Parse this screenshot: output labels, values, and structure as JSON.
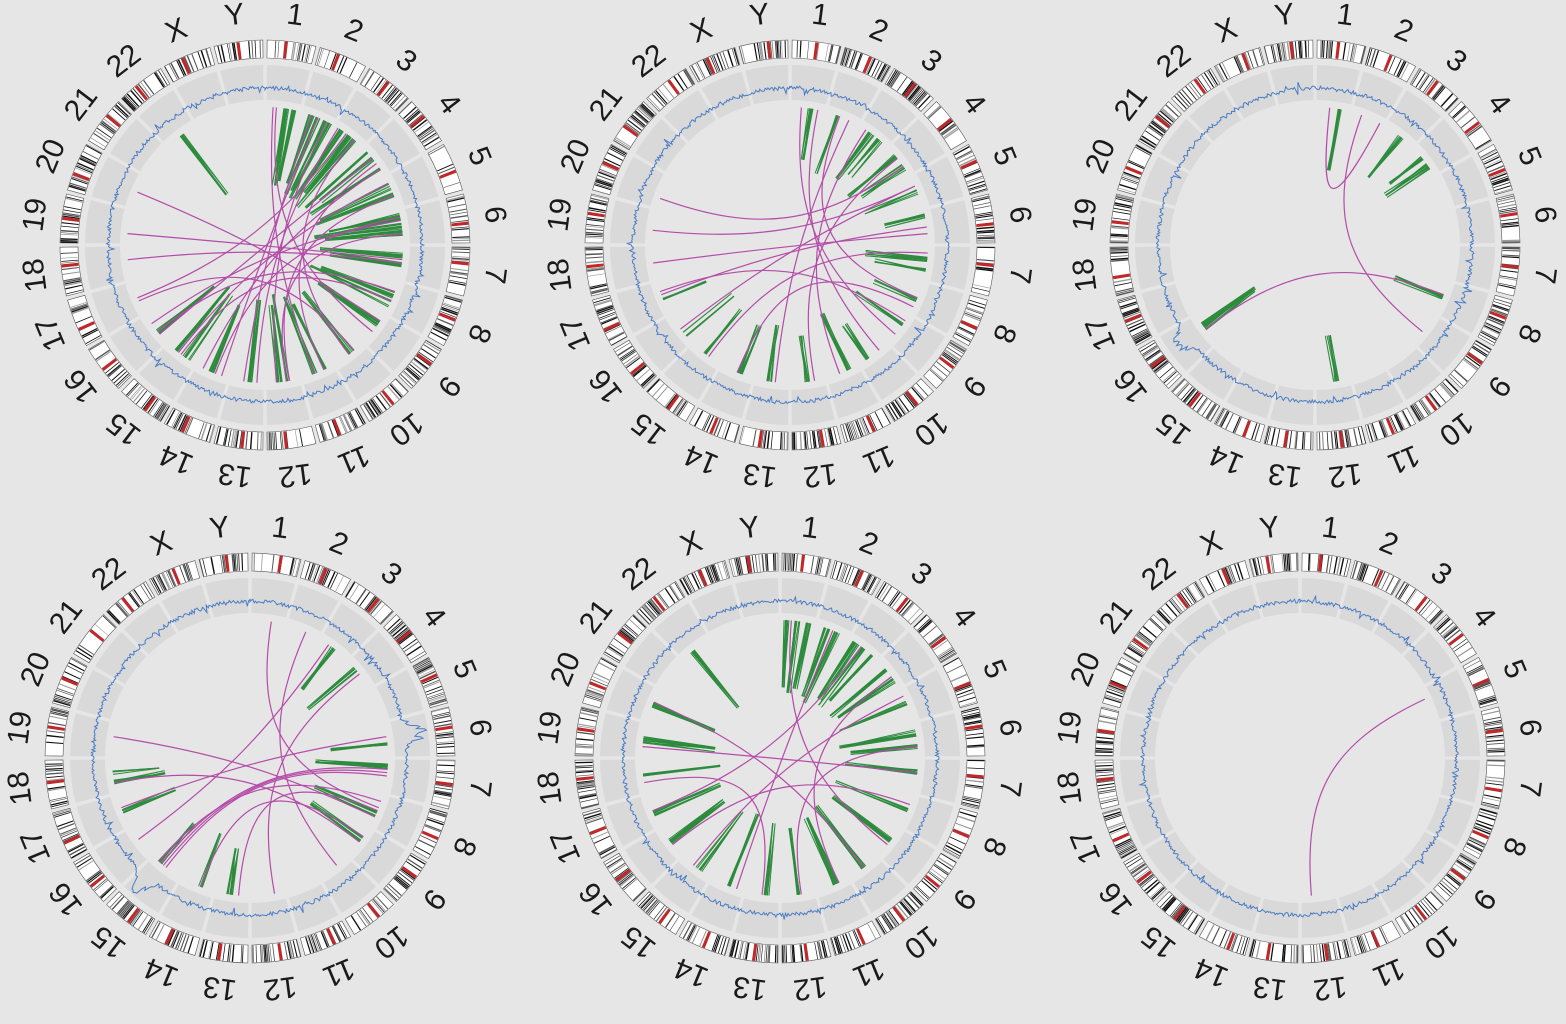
{
  "chromosomes": [
    "1",
    "2",
    "3",
    "4",
    "5",
    "6",
    "7",
    "8",
    "9",
    "10",
    "11",
    "12",
    "13",
    "14",
    "15",
    "16",
    "17",
    "18",
    "19",
    "20",
    "21",
    "22",
    "X",
    "Y"
  ],
  "colors": {
    "background": "#e6e6e6",
    "track": "#d9d9d9",
    "copy_number_line": "#4a7cc4",
    "intra_chromosomal_link": "#2e8b3e",
    "inter_chromosomal_link": "#b44ca8",
    "band_dark": "#111111",
    "band_centromere": "#c0282a"
  },
  "panels": [
    {
      "id": "panel-1",
      "density": "high",
      "intra_links": [
        [
          2,
          30,
          0.7
        ],
        [
          2,
          50,
          0.8
        ],
        [
          2,
          70,
          0.75
        ],
        [
          2,
          90,
          0.82
        ],
        [
          3,
          20,
          0.8
        ],
        [
          3,
          45,
          0.7
        ],
        [
          3,
          65,
          0.85
        ],
        [
          4,
          15,
          0.8
        ],
        [
          4,
          40,
          0.65
        ],
        [
          4,
          75,
          0.8
        ],
        [
          5,
          30,
          0.75
        ],
        [
          5,
          60,
          0.8
        ],
        [
          6,
          20,
          0.7
        ],
        [
          6,
          45,
          0.85
        ],
        [
          6,
          70,
          0.75
        ],
        [
          7,
          25,
          0.8
        ],
        [
          7,
          55,
          0.7
        ],
        [
          8,
          40,
          0.75
        ],
        [
          8,
          70,
          0.85
        ],
        [
          9,
          30,
          0.7
        ],
        [
          10,
          40,
          0.75
        ],
        [
          11,
          30,
          0.7
        ],
        [
          11,
          60,
          0.8
        ],
        [
          12,
          30,
          0.85
        ],
        [
          12,
          60,
          0.75
        ],
        [
          13,
          40,
          0.8
        ],
        [
          14,
          50,
          0.7
        ],
        [
          15,
          30,
          0.75
        ],
        [
          15,
          70,
          0.8
        ],
        [
          16,
          40,
          0.7
        ],
        [
          1,
          60,
          0.75
        ],
        [
          1,
          85,
          0.7
        ],
        [
          22,
          50,
          0.72
        ]
      ],
      "inter_links": [
        [
          1,
          30,
          9,
          60
        ],
        [
          2,
          50,
          14,
          20
        ],
        [
          3,
          40,
          17,
          50
        ],
        [
          4,
          60,
          11,
          30
        ],
        [
          5,
          20,
          15,
          60
        ],
        [
          6,
          70,
          12,
          40
        ],
        [
          7,
          40,
          19,
          30
        ],
        [
          8,
          30,
          16,
          40
        ],
        [
          9,
          20,
          20,
          50
        ],
        [
          10,
          50,
          3,
          70
        ],
        [
          11,
          60,
          1,
          20
        ],
        [
          12,
          30,
          5,
          60
        ],
        [
          13,
          60,
          2,
          30
        ],
        [
          14,
          40,
          6,
          20
        ],
        [
          15,
          50,
          8,
          60
        ],
        [
          16,
          30,
          4,
          40
        ],
        [
          17,
          40,
          10,
          30
        ],
        [
          18,
          60,
          7,
          50
        ],
        [
          2,
          80,
          12,
          70
        ],
        [
          3,
          10,
          13,
          20
        ],
        [
          4,
          80,
          14,
          80
        ],
        [
          6,
          30,
          16,
          70
        ]
      ],
      "cnv_events": []
    },
    {
      "id": "panel-2",
      "density": "medium",
      "intra_links": [
        [
          1,
          60,
          0.5
        ],
        [
          2,
          30,
          0.6
        ],
        [
          3,
          70,
          0.45
        ],
        [
          3,
          40,
          0.55
        ],
        [
          4,
          30,
          0.6
        ],
        [
          4,
          70,
          0.5
        ],
        [
          5,
          50,
          0.55
        ],
        [
          6,
          20,
          0.4
        ],
        [
          7,
          40,
          0.6
        ],
        [
          7,
          70,
          0.5
        ],
        [
          8,
          60,
          0.45
        ],
        [
          9,
          40,
          0.55
        ],
        [
          10,
          70,
          0.4
        ],
        [
          11,
          30,
          0.6
        ],
        [
          12,
          50,
          0.45
        ],
        [
          13,
          60,
          0.55
        ],
        [
          14,
          40,
          0.5
        ],
        [
          15,
          50,
          0.55
        ],
        [
          16,
          30,
          0.6
        ],
        [
          17,
          50,
          0.45
        ]
      ],
      "inter_links": [
        [
          1,
          30,
          9,
          70
        ],
        [
          1,
          80,
          10,
          30
        ],
        [
          2,
          40,
          8,
          50
        ],
        [
          2,
          70,
          13,
          40
        ],
        [
          3,
          20,
          11,
          60
        ],
        [
          4,
          40,
          12,
          30
        ],
        [
          5,
          30,
          16,
          50
        ],
        [
          6,
          50,
          17,
          60
        ],
        [
          7,
          20,
          15,
          40
        ],
        [
          18,
          50,
          6,
          70
        ],
        [
          19,
          40,
          5,
          30
        ],
        [
          20,
          30,
          4,
          70
        ],
        [
          17,
          70,
          9,
          20
        ],
        [
          8,
          80,
          14,
          50
        ]
      ],
      "cnv_events": []
    },
    {
      "id": "panel-3",
      "density": "low",
      "intra_links": [
        [
          16,
          55,
          0.6
        ],
        [
          16,
          60,
          0.58
        ],
        [
          16,
          65,
          0.62
        ],
        [
          1,
          70,
          0.6
        ],
        [
          3,
          60,
          0.5
        ],
        [
          4,
          40,
          0.4
        ],
        [
          4,
          70,
          0.5
        ],
        [
          8,
          50,
          0.5
        ],
        [
          12,
          40,
          0.45
        ]
      ],
      "inter_links": [
        [
          16,
          50,
          8,
          40
        ],
        [
          1,
          40,
          2,
          90
        ],
        [
          2,
          30,
          9,
          60
        ]
      ],
      "cnv_events": [
        [
          16,
          60
        ]
      ]
    },
    {
      "id": "panel-4",
      "density": "low",
      "intra_links": [
        [
          18,
          30,
          0.5
        ],
        [
          18,
          60,
          0.45
        ],
        [
          17,
          50,
          0.55
        ],
        [
          3,
          50,
          0.5
        ],
        [
          4,
          30,
          0.6
        ],
        [
          13,
          60,
          0.45
        ],
        [
          14,
          40,
          0.55
        ],
        [
          15,
          70,
          0.5
        ],
        [
          8,
          60,
          0.65
        ],
        [
          9,
          40,
          0.6
        ],
        [
          7,
          20,
          0.7
        ],
        [
          6,
          60,
          0.55
        ]
      ],
      "inter_links": [
        [
          15,
          70,
          7,
          30
        ],
        [
          15,
          60,
          7,
          40
        ],
        [
          15,
          50,
          7,
          50
        ],
        [
          15,
          80,
          8,
          20
        ],
        [
          1,
          60,
          8,
          40
        ],
        [
          3,
          30,
          16,
          60
        ],
        [
          4,
          50,
          12,
          30
        ],
        [
          18,
          30,
          9,
          50
        ],
        [
          19,
          60,
          8,
          70
        ],
        [
          14,
          40,
          9,
          30
        ],
        [
          17,
          60,
          6,
          40
        ],
        [
          13,
          30,
          8,
          50
        ],
        [
          2,
          60,
          10,
          40
        ]
      ],
      "cnv_events": [
        [
          15,
          75
        ],
        [
          6,
          40
        ]
      ]
    },
    {
      "id": "panel-5",
      "density": "high",
      "intra_links": [
        [
          1,
          20,
          0.65
        ],
        [
          1,
          50,
          0.7
        ],
        [
          1,
          80,
          0.65
        ],
        [
          2,
          30,
          0.7
        ],
        [
          2,
          60,
          0.75
        ],
        [
          3,
          20,
          0.65
        ],
        [
          3,
          50,
          0.7
        ],
        [
          3,
          80,
          0.6
        ],
        [
          4,
          30,
          0.7
        ],
        [
          4,
          70,
          0.65
        ],
        [
          5,
          40,
          0.7
        ],
        [
          6,
          30,
          0.75
        ],
        [
          6,
          70,
          0.65
        ],
        [
          7,
          40,
          0.7
        ],
        [
          8,
          50,
          0.75
        ],
        [
          9,
          40,
          0.7
        ],
        [
          10,
          50,
          0.75
        ],
        [
          11,
          40,
          0.7
        ],
        [
          12,
          50,
          0.65
        ],
        [
          13,
          40,
          0.7
        ],
        [
          14,
          50,
          0.75
        ],
        [
          15,
          40,
          0.7
        ],
        [
          16,
          50,
          0.65
        ],
        [
          17,
          40,
          0.7
        ],
        [
          18,
          50,
          0.75
        ],
        [
          19,
          50,
          0.7
        ],
        [
          20,
          50,
          0.65
        ],
        [
          22,
          40,
          0.7
        ]
      ],
      "inter_links": [
        [
          1,
          30,
          9,
          60
        ],
        [
          2,
          50,
          14,
          20
        ],
        [
          3,
          40,
          17,
          50
        ],
        [
          4,
          60,
          11,
          30
        ],
        [
          5,
          20,
          15,
          60
        ],
        [
          6,
          70,
          12,
          40
        ],
        [
          7,
          40,
          19,
          30
        ],
        [
          8,
          30,
          16,
          40
        ],
        [
          10,
          50,
          20,
          60
        ],
        [
          13,
          50,
          18,
          30
        ]
      ],
      "cnv_events": []
    },
    {
      "id": "panel-6",
      "density": "minimal",
      "intra_links": [],
      "inter_links": [
        [
          5,
          30,
          12,
          70
        ]
      ],
      "cnv_events": []
    }
  ]
}
